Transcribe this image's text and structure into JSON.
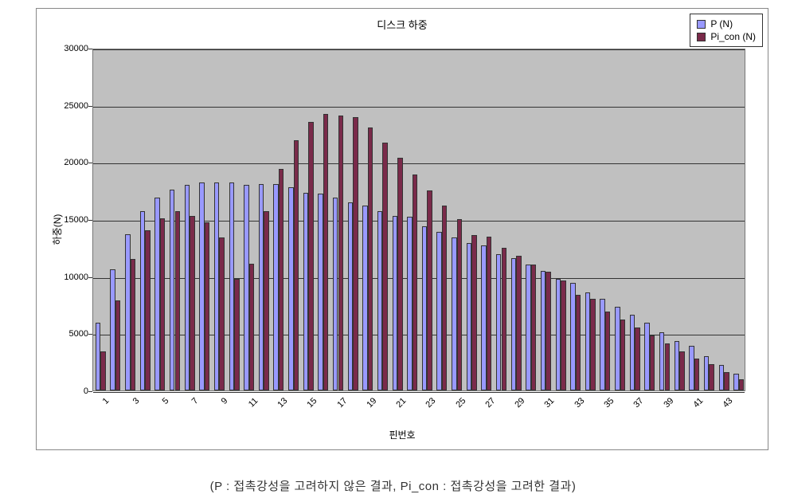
{
  "chart": {
    "type": "bar",
    "title": "디스크 하중",
    "title_fontsize": 13,
    "x_axis_title": "핀번호",
    "y_axis_title": "하중(N)",
    "axis_title_fontsize": 12,
    "tick_fontsize": 11,
    "background_color": "#ffffff",
    "plot_background_color": "#c0c0c0",
    "grid_color": "#333333",
    "border_color": "#888888",
    "ylim": [
      0,
      30000
    ],
    "ytick_step": 5000,
    "yticks": [
      0,
      5000,
      10000,
      15000,
      20000,
      25000,
      30000
    ],
    "categories": [
      1,
      2,
      3,
      4,
      5,
      6,
      7,
      8,
      9,
      10,
      11,
      12,
      13,
      14,
      15,
      16,
      17,
      18,
      19,
      20,
      21,
      22,
      23,
      24,
      25,
      26,
      27,
      28,
      29,
      30,
      31,
      32,
      33,
      34,
      35,
      36,
      37,
      38,
      39,
      40,
      41,
      42,
      43,
      44
    ],
    "xtick_labels_shown": [
      1,
      3,
      5,
      7,
      9,
      11,
      13,
      15,
      17,
      19,
      21,
      23,
      25,
      27,
      29,
      31,
      33,
      35,
      37,
      39,
      41,
      43
    ],
    "legend": {
      "position": "top-right",
      "border_color": "#333333",
      "items": [
        {
          "label": "P (N)",
          "color": "#9999ff"
        },
        {
          "label": "Pi_con (N)",
          "color": "#7a2a4a"
        }
      ]
    },
    "series": [
      {
        "name": "P (N)",
        "color": "#9999ff",
        "border_color": "#333333",
        "values": [
          5900,
          10600,
          13700,
          15700,
          16900,
          17600,
          18000,
          18200,
          18200,
          18200,
          18000,
          18100,
          18100,
          17800,
          17300,
          17200,
          16900,
          16500,
          16200,
          15700,
          15300,
          15200,
          14400,
          13900,
          13400,
          12900,
          12700,
          11900,
          11600,
          11000,
          10500,
          9800,
          9400,
          8600,
          8000,
          7300,
          6600,
          5900,
          5100,
          4300,
          3900,
          3000,
          2200,
          1500
        ]
      },
      {
        "name": "Pi_con (N)",
        "color": "#7a2a4a",
        "border_color": "#333333",
        "values": [
          3400,
          7900,
          11500,
          14000,
          15100,
          15700,
          15300,
          14700,
          13400,
          9800,
          11100,
          15700,
          19400,
          21900,
          23500,
          24200,
          24100,
          23900,
          23000,
          21700,
          20400,
          18900,
          17500,
          16200,
          15000,
          13600,
          13500,
          12500,
          11800,
          11000,
          10400,
          9600,
          8400,
          8000,
          6900,
          6200,
          5500,
          4800,
          4100,
          3400,
          2800,
          2300,
          1600,
          1000
        ]
      }
    ],
    "bar_group_width_ratio": 0.7,
    "bar_gap_ratio": 0.0
  },
  "caption": "(P : 접촉강성을 고려하지 않은 결과, Pi_con : 접촉강성을 고려한 결과)",
  "caption_fontsize": 15
}
